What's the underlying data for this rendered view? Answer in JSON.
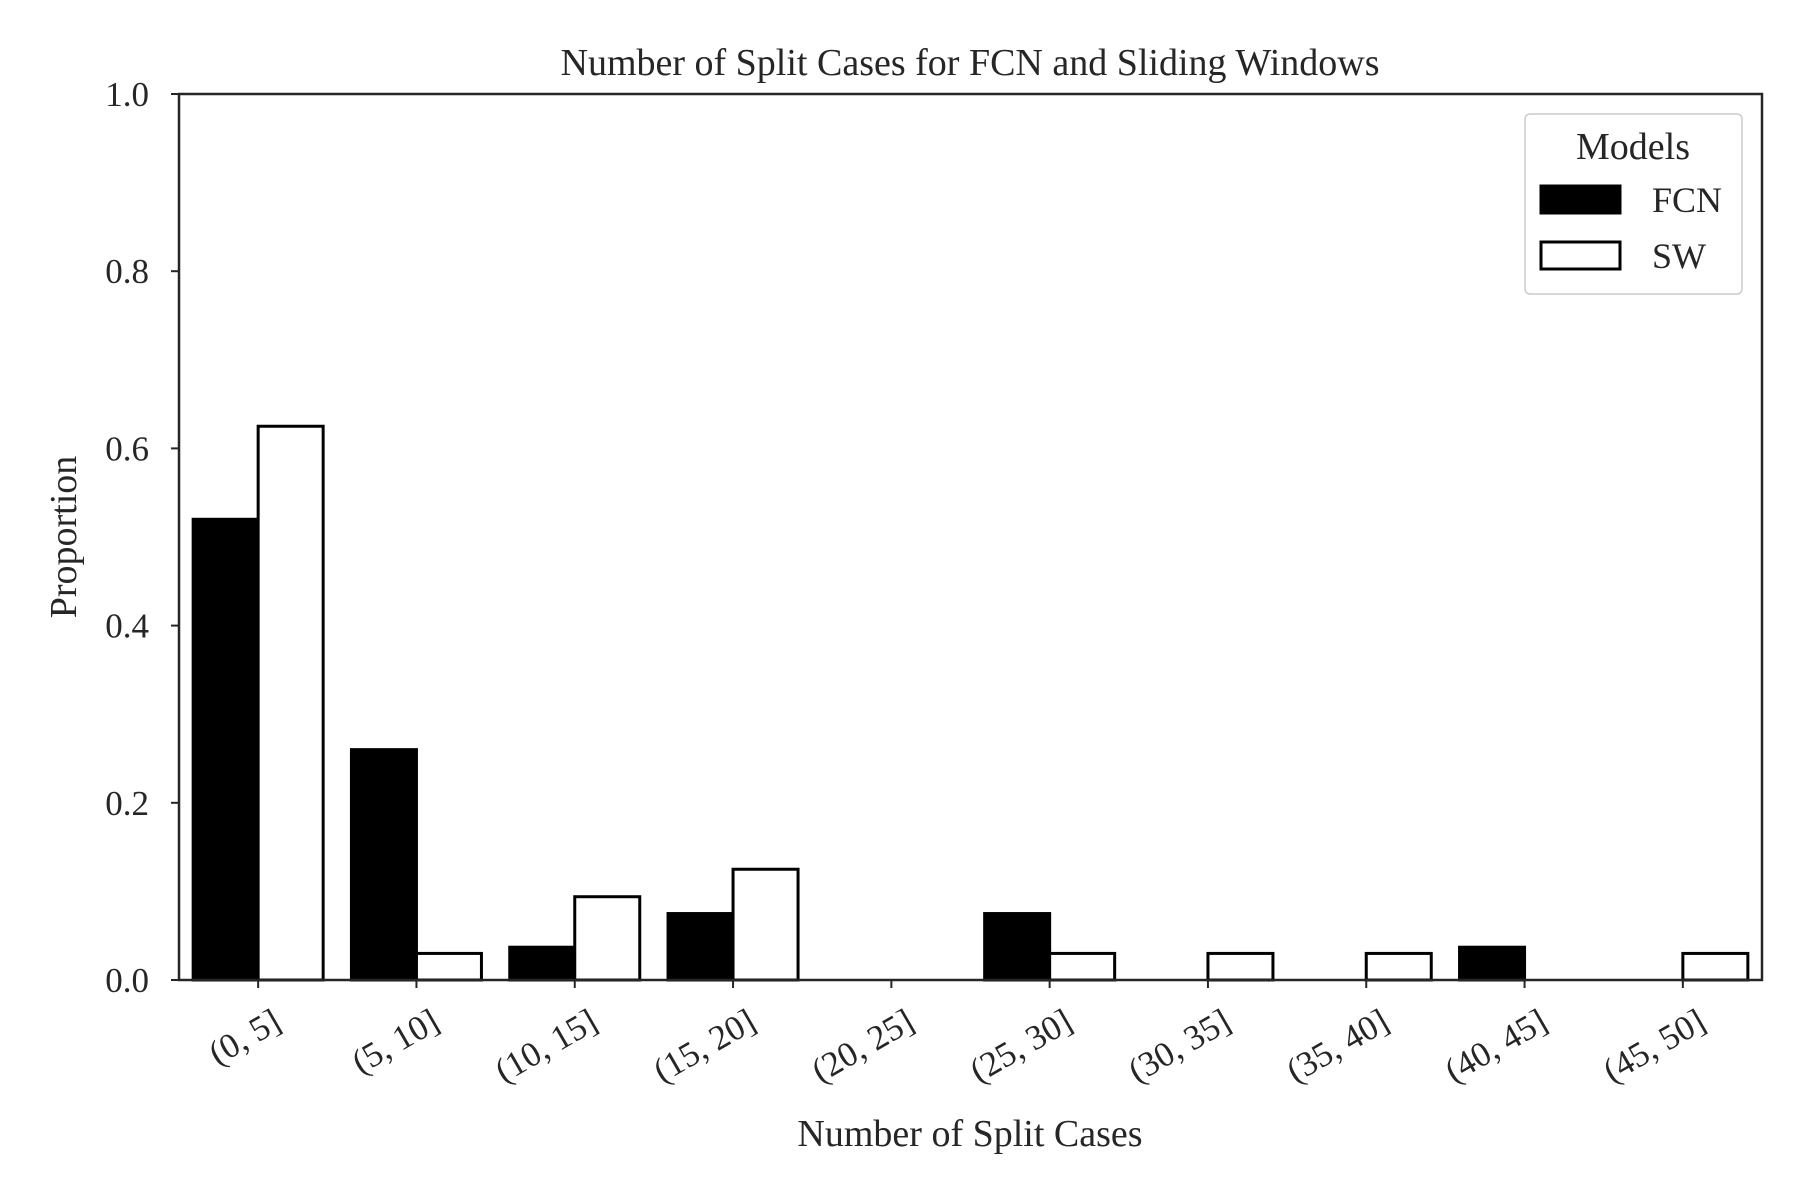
{
  "chart_data": {
    "type": "bar",
    "title": "Number of Split Cases for FCN and Sliding Windows",
    "xlabel": "Number of Split Cases",
    "ylabel": "Proportion",
    "ylim": [
      0,
      1.0
    ],
    "yticks": [
      "0.0",
      "0.2",
      "0.4",
      "0.6",
      "0.8",
      "1.0"
    ],
    "categories": [
      "(0, 5]",
      "(5, 10]",
      "(10, 15]",
      "(15, 20]",
      "(20, 25]",
      "(25, 30]",
      "(30, 35]",
      "(35, 40]",
      "(40, 45]",
      "(45, 50]"
    ],
    "series": [
      {
        "name": "FCN",
        "fill": "#000000",
        "values": [
          0.52,
          0.26,
          0.037,
          0.075,
          0.0,
          0.075,
          0.0,
          0.0,
          0.037,
          0.0
        ]
      },
      {
        "name": "SW",
        "fill": "#ffffff",
        "values": [
          0.625,
          0.03,
          0.094,
          0.125,
          0.0,
          0.03,
          0.03,
          0.03,
          0.0,
          0.03
        ]
      }
    ],
    "legend": {
      "title": "Models",
      "placement": "top-right"
    },
    "grid": false
  }
}
